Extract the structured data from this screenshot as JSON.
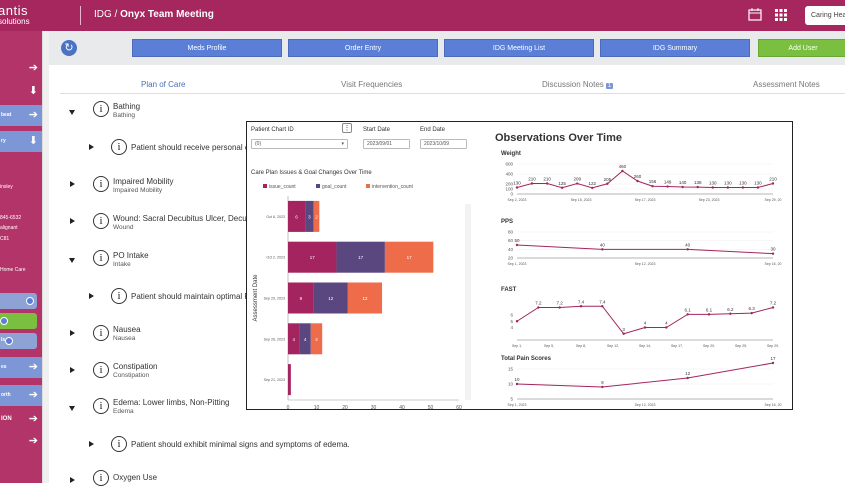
{
  "header": {
    "logo_line1": "antis",
    "logo_line2": "solutions",
    "breadcrumb_prefix": "IDG /",
    "breadcrumb_page": "Onyx Team Meeting",
    "user_label": "Caring Hea"
  },
  "sidebar": {
    "items": [
      {
        "label": "",
        "style": "dark"
      },
      {
        "label": "",
        "style": "dark"
      },
      {
        "label": "beat",
        "style": "light"
      },
      {
        "label": "ry",
        "style": "light"
      },
      {
        "label": "es",
        "style": "light"
      },
      {
        "label": "orth",
        "style": "light"
      },
      {
        "label": "ION",
        "style": "dark"
      },
      {
        "label": "",
        "style": "dark"
      }
    ],
    "texts": [
      "insley",
      "845-6532",
      "alignant",
      "C81",
      "Home Care"
    ],
    "ck_label": "ls"
  },
  "toolbar": {
    "buttons": [
      "Meds Profile",
      "Order Entry",
      "IDG Meeting List",
      "IDG Summary",
      "Add User"
    ]
  },
  "tabs": {
    "plan": "Plan of Care",
    "visit": "Visit Frequencies",
    "discussion": "Discussion Notes",
    "discussion_count": "1",
    "assessment": "Assessment Notes"
  },
  "care_items": [
    {
      "title": "Bathing",
      "sub": "Bathing",
      "expanded": true
    },
    {
      "goal": "Patient should receive personal ca"
    },
    {
      "title": "Impaired Mobility",
      "sub": "Impaired Mobility",
      "expanded": false
    },
    {
      "title": "Wound: Sacral Decubitus Ulcer, Decubi",
      "sub": "Wound",
      "expanded": false
    },
    {
      "title": "PO Intake",
      "sub": "Intake",
      "expanded": true
    },
    {
      "goal": "Patient should maintain optimal P"
    },
    {
      "title": "Nausea",
      "sub": "Nausea",
      "expanded": false
    },
    {
      "title": "Constipation",
      "sub": "Constipation",
      "expanded": false
    },
    {
      "title": "Edema: Lower limbs, Non-Pitting",
      "sub": "Edema",
      "expanded": true
    },
    {
      "goal": "Patient should exhibit minimal signs and symptoms of edema."
    },
    {
      "title": "Oxygen Use",
      "sub": "",
      "expanded": false
    }
  ],
  "panel": {
    "chart_id_label": "Patient Chart ID",
    "chart_id_value": "(0)",
    "start_label": "Start Date",
    "start_value": "2023/09/01",
    "end_label": "End Date",
    "end_value": "2023/10/09",
    "title": "Observations Over Time"
  },
  "chart_data": [
    {
      "type": "bar",
      "stacked": true,
      "orientation": "horizontal",
      "title": "Care Plan Issues & Goal Changes Over Time",
      "ylabel": "Assessment Date",
      "categories": [
        "Oct 6, 2023",
        "Oct 2, 2023",
        "Sep 29, 2023",
        "Sep 26, 2023",
        "Sep 21, 2023"
      ],
      "series": [
        {
          "name": "issue_count",
          "color": "#a3245e",
          "values": [
            6,
            17,
            9,
            4,
            1
          ]
        },
        {
          "name": "goal_count",
          "color": "#5a4780",
          "values": [
            3,
            17,
            12,
            4,
            0
          ]
        },
        {
          "name": "intervention_count",
          "color": "#ef6c4a",
          "values": [
            2,
            17,
            12,
            4,
            0
          ]
        }
      ],
      "xlim": [
        0,
        60
      ],
      "xticks": [
        0,
        10,
        20,
        30,
        40,
        50,
        60
      ]
    },
    {
      "type": "line",
      "title": "Weight",
      "color": "#a3245e",
      "x": [
        "Sep 1, 2023",
        "Sep 3",
        "Sep 5",
        "Sep 8",
        "Sep 10",
        "Sep 11",
        "Sep 13",
        "Sep 15, 2023",
        "Sep 16",
        "Sep 17, 2023",
        "Sep 18",
        "Sep 19",
        "Sep 20",
        "Sep 21",
        "Sep 22",
        "Sep 23, 2023",
        "Sep 24",
        "Sep 29, 20"
      ],
      "values": [
        130,
        210,
        210,
        125,
        209,
        122,
        205,
        460,
        260,
        156,
        149,
        140,
        138,
        130,
        130,
        130,
        130,
        210
      ],
      "ylim": [
        0,
        600
      ],
      "yticks": [
        0,
        100,
        200,
        400,
        600
      ],
      "xticklabels": [
        "Sep 2, 2023",
        "Sep 15, 2023",
        "Sep 17, 2023",
        "Sep 23, 2023",
        "Sep 29, 20"
      ]
    },
    {
      "type": "line",
      "title": "PPS",
      "color": "#a3245e",
      "x": [
        "Sep 1, 2023",
        "Sep 5",
        "Sep 12, 2023",
        "Sep 16, 20"
      ],
      "values": [
        50,
        40,
        40,
        30
      ],
      "ylim": [
        20,
        80
      ],
      "yticks": [
        20,
        40,
        60,
        80
      ],
      "xticklabels": [
        "Sep 1, 2023",
        "Sep 12, 2023",
        "Sep 16, 20"
      ]
    },
    {
      "type": "line",
      "title": "FAST",
      "color": "#a3245e",
      "values": [
        5,
        7.2,
        7.2,
        7.4,
        7.4,
        3,
        4,
        4,
        6.1,
        6.1,
        6.2,
        6.3,
        7.2
      ],
      "labels": [
        "",
        "7.2",
        "7.2",
        "7.4",
        "7.4",
        "3",
        "4",
        "4",
        "6.1",
        "6.1",
        "6.2",
        "6.3",
        "7.2"
      ],
      "ytick_labels": [
        "4",
        "5",
        "6"
      ],
      "xticklabels": [
        "Sep 1,",
        "Sep 5,",
        "Sep 8,",
        "Sep 12,",
        "Sep 14,",
        "Sep 17,",
        "Sep 20,",
        "Sep 25,",
        "Sep 29,"
      ]
    },
    {
      "type": "line",
      "title": "Total Pain Scores",
      "color": "#a3245e",
      "x": [
        "Sep 1, 2023",
        "Sep 5",
        "Sep 12, 2023",
        "Sep 16, 20"
      ],
      "values": [
        10,
        9,
        12,
        17
      ],
      "ylim": [
        5,
        15
      ],
      "yticks": [
        5,
        10,
        15
      ],
      "xticklabels": [
        "Sep 1, 2023",
        "Sep 12, 2023",
        "Sep 16, 20"
      ]
    }
  ]
}
